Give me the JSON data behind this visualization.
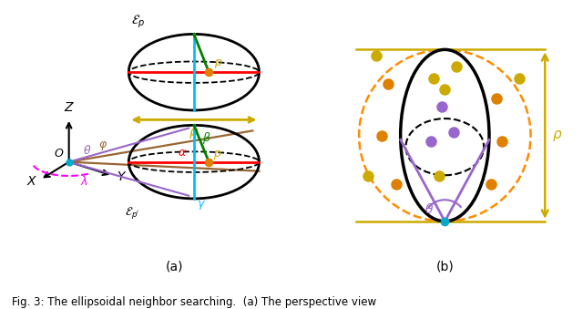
{
  "fig_width": 6.4,
  "fig_height": 3.39,
  "dpi": 100,
  "bg_color": "#ffffff",
  "caption": "Fig. 3: The ellipsoidal neighbor searching.  (a) The perspective view",
  "colors": {
    "black": "#000000",
    "red": "#ff0000",
    "cyan": "#00bfff",
    "green": "#00cc00",
    "orange_dot": "#e08000",
    "gold": "#ccaa00",
    "purple": "#9966cc",
    "brown": "#996633",
    "magenta": "#ff00cc",
    "orange_dashed": "#ff8c00",
    "blue_dot": "#00aacc"
  }
}
